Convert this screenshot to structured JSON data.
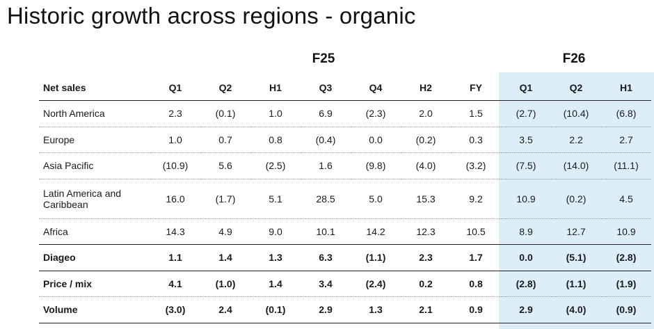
{
  "page": {
    "title": "Historic growth across regions - organic"
  },
  "periods": {
    "f25": "F25",
    "f26": "F26"
  },
  "table": {
    "header": [
      "Net sales",
      "Q1",
      "Q2",
      "H1",
      "Q3",
      "Q4",
      "H2",
      "FY",
      "Q1",
      "Q2",
      "H1"
    ],
    "rows": [
      {
        "label": "North America",
        "values": [
          "2.3",
          "(0.1)",
          "1.0",
          "6.9",
          "(2.3)",
          "2.0",
          "1.5",
          "(2.7)",
          "(10.4)",
          "(6.8)"
        ]
      },
      {
        "label": "Europe",
        "values": [
          "1.0",
          "0.7",
          "0.8",
          "(0.4)",
          "0.0",
          "(0.2)",
          "0.3",
          "3.5",
          "2.2",
          "2.7"
        ]
      },
      {
        "label": "Asia Pacific",
        "values": [
          "(10.9)",
          "5.6",
          "(2.5)",
          "1.6",
          "(9.8)",
          "(4.0)",
          "(3.2)",
          "(7.5)",
          "(14.0)",
          "(11.1)"
        ]
      },
      {
        "label": "Latin America and Caribbean",
        "values": [
          "16.0",
          "(1.7)",
          "5.1",
          "28.5",
          "5.0",
          "15.3",
          "9.2",
          "10.9",
          "(0.2)",
          "4.5"
        ]
      },
      {
        "label": "Africa",
        "values": [
          "14.3",
          "4.9",
          "9.0",
          "10.1",
          "14.2",
          "12.3",
          "10.5",
          "8.9",
          "12.7",
          "10.9"
        ]
      },
      {
        "label": "Diageo",
        "values": [
          "1.1",
          "1.4",
          "1.3",
          "6.3",
          "(1.1)",
          "2.3",
          "1.7",
          "0.0",
          "(5.1)",
          "(2.8)"
        ]
      },
      {
        "label": "Price / mix",
        "values": [
          "4.1",
          "(1.0)",
          "1.4",
          "3.4",
          "(2.4)",
          "0.2",
          "0.8",
          "(2.8)",
          "(1.1)",
          "(1.9)"
        ]
      },
      {
        "label": "Volume",
        "values": [
          "(3.0)",
          "2.4",
          "(0.1)",
          "2.9",
          "1.3",
          "2.1",
          "0.9",
          "2.9",
          "(4.0)",
          "(0.9)"
        ]
      }
    ]
  }
}
